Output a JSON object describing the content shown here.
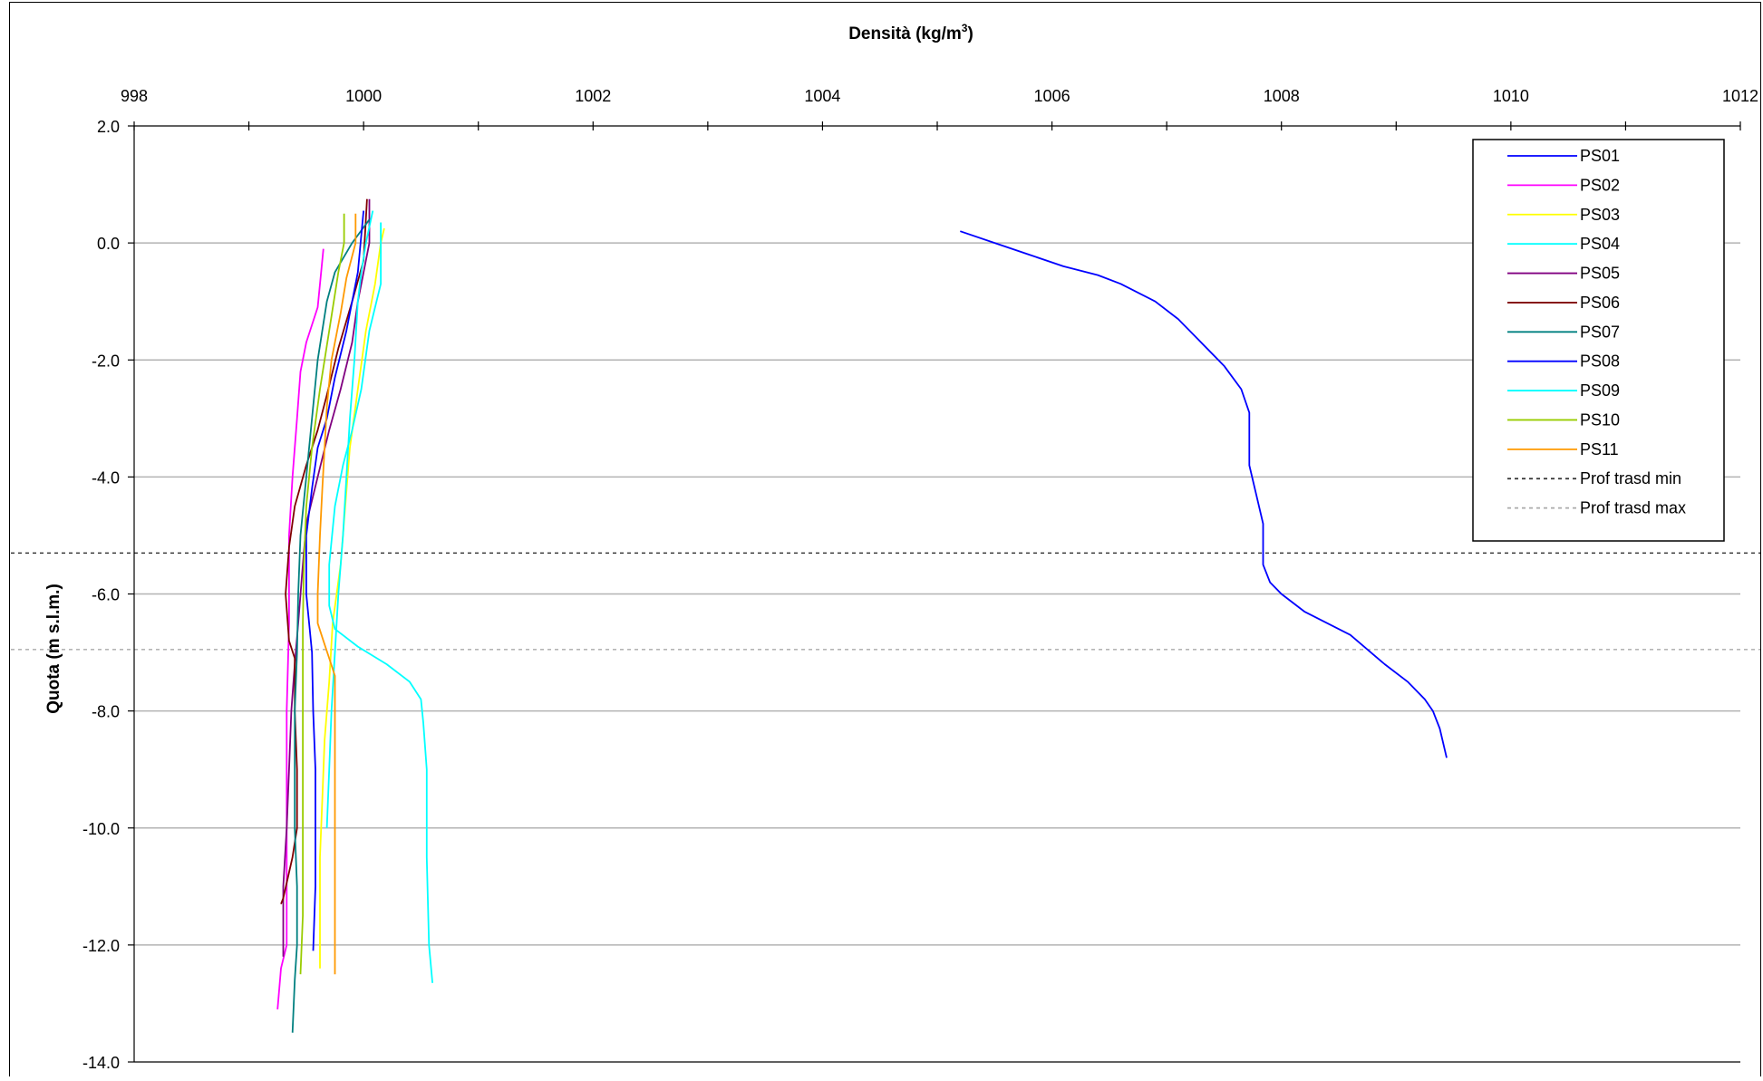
{
  "chart_data": {
    "type": "line",
    "title": "Densità (kg/m³)",
    "title_main": "Densità (kg/m",
    "title_sup": "3",
    "title_end": ")",
    "xlabel": "",
    "ylabel": "Quota (m s.l.m.)",
    "xlim": [
      998,
      1012
    ],
    "ylim": [
      -14,
      2
    ],
    "x_axis_position": "top",
    "x_ticks": [
      998,
      1000,
      1002,
      1004,
      1006,
      1008,
      1010,
      1012
    ],
    "x_tick_labels": [
      "998",
      "1000",
      "1002",
      "1004",
      "1006",
      "1008",
      "1010",
      "1012"
    ],
    "y_ticks": [
      2,
      0,
      -2,
      -4,
      -6,
      -8,
      -10,
      -12,
      -14
    ],
    "y_tick_labels": [
      "2.0",
      "0.0",
      "-2.0",
      "-4.0",
      "-6.0",
      "-8.0",
      "-10.0",
      "-12.0",
      "-14.0"
    ],
    "grid": "horizontal",
    "legend_position": "top-right",
    "series": [
      {
        "name": "PS01",
        "color": "#0000ff",
        "style": "solid",
        "points": [
          [
            1005.2,
            0.2
          ],
          [
            1005.5,
            0.0
          ],
          [
            1005.8,
            -0.2
          ],
          [
            1006.1,
            -0.4
          ],
          [
            1006.4,
            -0.55
          ],
          [
            1006.6,
            -0.7
          ],
          [
            1006.9,
            -1.0
          ],
          [
            1007.1,
            -1.3
          ],
          [
            1007.3,
            -1.7
          ],
          [
            1007.5,
            -2.1
          ],
          [
            1007.65,
            -2.5
          ],
          [
            1007.72,
            -2.9
          ],
          [
            1007.72,
            -3.3
          ],
          [
            1007.72,
            -3.8
          ],
          [
            1007.78,
            -4.3
          ],
          [
            1007.84,
            -4.8
          ],
          [
            1007.84,
            -5.5
          ],
          [
            1007.9,
            -5.8
          ],
          [
            1008.0,
            -6.0
          ],
          [
            1008.2,
            -6.3
          ],
          [
            1008.6,
            -6.7
          ],
          [
            1008.9,
            -7.2
          ],
          [
            1009.1,
            -7.5
          ],
          [
            1009.25,
            -7.8
          ],
          [
            1009.32,
            -8.0
          ],
          [
            1009.38,
            -8.3
          ],
          [
            1009.44,
            -8.8
          ]
        ]
      },
      {
        "name": "PS02",
        "color": "#ff00ff",
        "style": "solid",
        "points": [
          [
            999.65,
            -0.1
          ],
          [
            999.6,
            -1.1
          ],
          [
            999.5,
            -1.7
          ],
          [
            999.45,
            -2.2
          ],
          [
            999.42,
            -3.0
          ],
          [
            999.38,
            -4.0
          ],
          [
            999.35,
            -5.0
          ],
          [
            999.35,
            -6.5
          ],
          [
            999.33,
            -8.0
          ],
          [
            999.33,
            -10.0
          ],
          [
            999.33,
            -12.0
          ],
          [
            999.28,
            -12.4
          ],
          [
            999.25,
            -13.1
          ]
        ]
      },
      {
        "name": "PS03",
        "color": "#ffff00",
        "style": "solid",
        "points": [
          [
            1000.18,
            0.25
          ],
          [
            1000.15,
            0.0
          ],
          [
            1000.1,
            -0.7
          ],
          [
            1000.02,
            -1.5
          ],
          [
            999.95,
            -2.5
          ],
          [
            999.88,
            -3.5
          ],
          [
            999.84,
            -4.5
          ],
          [
            999.8,
            -5.5
          ],
          [
            999.73,
            -6.5
          ],
          [
            999.7,
            -7.5
          ],
          [
            999.66,
            -8.5
          ],
          [
            999.64,
            -9.5
          ],
          [
            999.62,
            -10.5
          ],
          [
            999.62,
            -11.5
          ],
          [
            999.62,
            -12.4
          ]
        ]
      },
      {
        "name": "PS04",
        "color": "#00ffff",
        "style": "solid",
        "points": [
          [
            1000.15,
            0.35
          ],
          [
            1000.15,
            -0.7
          ],
          [
            1000.05,
            -1.5
          ],
          [
            999.98,
            -2.5
          ],
          [
            999.9,
            -3.2
          ],
          [
            999.82,
            -3.8
          ],
          [
            999.75,
            -4.5
          ],
          [
            999.7,
            -5.5
          ],
          [
            999.7,
            -6.2
          ],
          [
            999.75,
            -6.6
          ],
          [
            999.95,
            -6.9
          ],
          [
            1000.2,
            -7.2
          ],
          [
            1000.4,
            -7.5
          ],
          [
            1000.5,
            -7.8
          ],
          [
            1000.52,
            -8.2
          ],
          [
            1000.55,
            -9.0
          ],
          [
            1000.55,
            -10.5
          ],
          [
            1000.57,
            -12.0
          ],
          [
            1000.6,
            -12.65
          ]
        ]
      },
      {
        "name": "PS05",
        "color": "#800080",
        "style": "solid",
        "points": [
          [
            1000.05,
            0.75
          ],
          [
            1000.05,
            0.0
          ],
          [
            999.95,
            -1.0
          ],
          [
            999.9,
            -1.7
          ],
          [
            999.8,
            -2.5
          ],
          [
            999.7,
            -3.2
          ],
          [
            999.6,
            -4.0
          ],
          [
            999.5,
            -4.8
          ],
          [
            999.47,
            -5.5
          ],
          [
            999.43,
            -6.5
          ],
          [
            999.4,
            -7.2
          ],
          [
            999.37,
            -8.0
          ],
          [
            999.35,
            -9.0
          ],
          [
            999.33,
            -10.0
          ],
          [
            999.3,
            -11.0
          ],
          [
            999.3,
            -12.2
          ]
        ]
      },
      {
        "name": "PS06",
        "color": "#800000",
        "style": "solid",
        "points": [
          [
            1000.03,
            0.75
          ],
          [
            1000.0,
            -0.3
          ],
          [
            999.9,
            -1.0
          ],
          [
            999.78,
            -1.8
          ],
          [
            999.68,
            -2.6
          ],
          [
            999.6,
            -3.2
          ],
          [
            999.5,
            -3.8
          ],
          [
            999.4,
            -4.5
          ],
          [
            999.35,
            -5.2
          ],
          [
            999.32,
            -6.0
          ],
          [
            999.35,
            -6.8
          ],
          [
            999.4,
            -7.1
          ],
          [
            999.4,
            -8.0
          ],
          [
            999.42,
            -9.0
          ],
          [
            999.42,
            -10.0
          ],
          [
            999.38,
            -10.5
          ],
          [
            999.3,
            -11.2
          ],
          [
            999.28,
            -11.3
          ]
        ]
      },
      {
        "name": "PS07",
        "color": "#008080",
        "style": "solid",
        "points": [
          [
            1000.05,
            0.4
          ],
          [
            999.9,
            0.0
          ],
          [
            999.75,
            -0.5
          ],
          [
            999.68,
            -1.0
          ],
          [
            999.6,
            -2.0
          ],
          [
            999.55,
            -3.0
          ],
          [
            999.5,
            -4.0
          ],
          [
            999.45,
            -5.0
          ],
          [
            999.43,
            -6.0
          ],
          [
            999.42,
            -7.0
          ],
          [
            999.4,
            -8.0
          ],
          [
            999.4,
            -9.0
          ],
          [
            999.4,
            -10.0
          ],
          [
            999.42,
            -11.0
          ],
          [
            999.42,
            -12.0
          ],
          [
            999.4,
            -12.6
          ],
          [
            999.38,
            -13.5
          ]
        ]
      },
      {
        "name": "PS08",
        "color": "#0000ff",
        "style": "solid",
        "points": [
          [
            1000.0,
            0.55
          ],
          [
            999.95,
            -0.5
          ],
          [
            999.85,
            -1.5
          ],
          [
            999.75,
            -2.3
          ],
          [
            999.68,
            -3.0
          ],
          [
            999.6,
            -3.5
          ],
          [
            999.55,
            -4.2
          ],
          [
            999.5,
            -5.0
          ],
          [
            999.5,
            -6.0
          ],
          [
            999.55,
            -7.0
          ],
          [
            999.56,
            -8.0
          ],
          [
            999.58,
            -9.0
          ],
          [
            999.58,
            -10.3
          ],
          [
            999.58,
            -11.0
          ],
          [
            999.56,
            -12.1
          ]
        ]
      },
      {
        "name": "PS09",
        "color": "#00ffff",
        "style": "solid",
        "points": [
          [
            1000.08,
            0.55
          ],
          [
            1000.02,
            0.0
          ],
          [
            999.98,
            -0.5
          ],
          [
            999.95,
            -1.0
          ],
          [
            999.92,
            -2.0
          ],
          [
            999.88,
            -3.0
          ],
          [
            999.85,
            -4.0
          ],
          [
            999.82,
            -5.0
          ],
          [
            999.78,
            -6.0
          ],
          [
            999.75,
            -7.0
          ],
          [
            999.72,
            -8.0
          ],
          [
            999.7,
            -9.0
          ],
          [
            999.68,
            -10.0
          ]
        ]
      },
      {
        "name": "PS10",
        "color": "#99cc00",
        "style": "solid",
        "points": [
          [
            999.83,
            0.5
          ],
          [
            999.83,
            0.0
          ],
          [
            999.78,
            -0.5
          ],
          [
            999.7,
            -1.5
          ],
          [
            999.62,
            -2.5
          ],
          [
            999.55,
            -3.5
          ],
          [
            999.5,
            -4.5
          ],
          [
            999.48,
            -5.5
          ],
          [
            999.47,
            -6.5
          ],
          [
            999.47,
            -7.5
          ],
          [
            999.47,
            -8.5
          ],
          [
            999.47,
            -9.5
          ],
          [
            999.47,
            -10.5
          ],
          [
            999.47,
            -11.5
          ],
          [
            999.45,
            -12.5
          ]
        ]
      },
      {
        "name": "PS11",
        "color": "#ff9900",
        "style": "solid",
        "points": [
          [
            999.93,
            0.5
          ],
          [
            999.93,
            0.0
          ],
          [
            999.85,
            -0.6
          ],
          [
            999.8,
            -1.2
          ],
          [
            999.72,
            -2.0
          ],
          [
            999.68,
            -2.8
          ],
          [
            999.66,
            -3.5
          ],
          [
            999.64,
            -4.2
          ],
          [
            999.62,
            -5.0
          ],
          [
            999.6,
            -6.0
          ],
          [
            999.6,
            -6.5
          ],
          [
            999.65,
            -6.8
          ],
          [
            999.7,
            -7.1
          ],
          [
            999.75,
            -7.4
          ],
          [
            999.75,
            -8.5
          ],
          [
            999.75,
            -10.0
          ],
          [
            999.75,
            -11.5
          ],
          [
            999.75,
            -12.5
          ]
        ]
      },
      {
        "name": "Prof trasd min",
        "color": "#333333",
        "style": "dashed",
        "type": "hline",
        "y": -5.3
      },
      {
        "name": "Prof trasd max",
        "color": "#aaaaaa",
        "style": "dashed",
        "type": "hline",
        "y": -6.95
      }
    ]
  }
}
